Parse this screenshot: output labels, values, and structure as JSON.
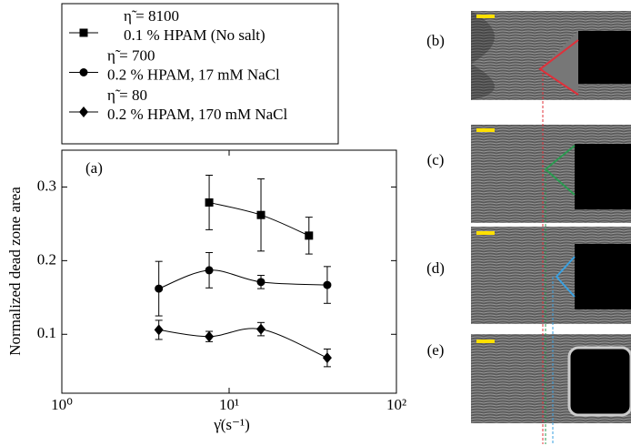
{
  "chart_data": {
    "type": "errorbar-line",
    "xlabel": "γ̇(s⁻¹)",
    "ylabel": "Normalized dead zone area",
    "annotation": "(a)",
    "panel_labels": [
      "(b)",
      "(c)",
      "(d)",
      "(e)"
    ],
    "xscale": "log",
    "xlim": [
      1,
      100
    ],
    "xticks": [
      {
        "value": 1,
        "label": "10⁰"
      },
      {
        "value": 10,
        "label": "10¹"
      },
      {
        "value": 100,
        "label": "10²"
      }
    ],
    "ylim": [
      0.02,
      0.35
    ],
    "yticks": [
      0.1,
      0.2,
      0.3
    ],
    "color": "#000000",
    "series": [
      {
        "name": "η̃ = 8100",
        "detail": "0.1 % HPAM (No salt)",
        "marker": "square",
        "x": [
          7.6,
          15.5,
          30
        ],
        "values": [
          0.279,
          0.262,
          0.234
        ],
        "errors": [
          0.037,
          0.049,
          0.025
        ]
      },
      {
        "name": "η̃ = 700",
        "detail": "0.2 % HPAM, 17 mM NaCl",
        "marker": "circle",
        "x": [
          3.8,
          7.6,
          15.5,
          38.6
        ],
        "values": [
          0.162,
          0.187,
          0.171,
          0.167
        ],
        "errors": [
          0.037,
          0.024,
          0.009,
          0.025
        ]
      },
      {
        "name": "η̃ = 80",
        "detail": "0.2 % HPAM, 170 mM NaCl",
        "marker": "diamond",
        "x": [
          3.8,
          7.6,
          15.5,
          38.6
        ],
        "values": [
          0.106,
          0.097,
          0.107,
          0.068
        ],
        "errors": [
          0.013,
          0.007,
          0.009,
          0.012
        ]
      }
    ]
  }
}
